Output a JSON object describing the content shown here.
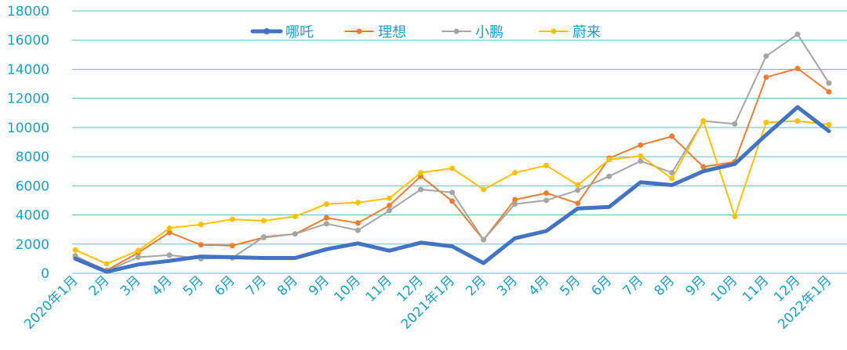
{
  "chart_data": {
    "type": "line",
    "title": "",
    "xlabel": "",
    "ylabel": "",
    "ylim": [
      0,
      18000
    ],
    "yticks": [
      0,
      2000,
      4000,
      6000,
      8000,
      10000,
      12000,
      14000,
      16000,
      18000
    ],
    "ytick_labels": [
      "0",
      "2000",
      "4000",
      "6000",
      "8000",
      "10000",
      "12000",
      "14000",
      "16000",
      "18000"
    ],
    "grid": true,
    "legend_position": "top",
    "categories": [
      "2020年1月",
      "2月",
      "3月",
      "4月",
      "5月",
      "6月",
      "7月",
      "8月",
      "9月",
      "10月",
      "11月",
      "12月",
      "2021年1月",
      "2月",
      "3月",
      "4月",
      "5月",
      "6月",
      "7月",
      "8月",
      "9月",
      "10月",
      "11月",
      "12月",
      "2022年1月"
    ],
    "series": [
      {
        "name": "哪吒",
        "color": "#4472c4",
        "values": [
          1000,
          100,
          600,
          850,
          1150,
          1100,
          1050,
          1050,
          1650,
          2050,
          1550,
          2100,
          1850,
          700,
          2400,
          2900,
          4450,
          4550,
          6250,
          6050,
          7000,
          7500,
          9500,
          11400,
          9750
        ]
      },
      {
        "name": "理想",
        "color": "#ed7d31",
        "values": [
          1150,
          200,
          1400,
          2800,
          1950,
          1900,
          2450,
          2700,
          3800,
          3450,
          4650,
          6650,
          4950,
          2300,
          5050,
          5500,
          4800,
          7900,
          8800,
          9400,
          7300,
          7650,
          13450,
          14050,
          12450
        ]
      },
      {
        "name": "小鹏",
        "color": "#a5a5a5",
        "values": [
          1200,
          150,
          1100,
          1250,
          1000,
          1050,
          2500,
          2700,
          3400,
          2950,
          4300,
          5750,
          5550,
          2300,
          4750,
          5000,
          5700,
          6650,
          7700,
          6900,
          10450,
          10250,
          14900,
          16400,
          13050
        ]
      },
      {
        "name": "蔚来",
        "color": "#ffc000",
        "values": [
          1600,
          650,
          1550,
          3100,
          3350,
          3700,
          3600,
          3900,
          4750,
          4850,
          5150,
          6900,
          7200,
          5750,
          6900,
          7400,
          6050,
          7800,
          8050,
          6500,
          10450,
          3900,
          10350,
          10450,
          10200
        ]
      }
    ]
  }
}
